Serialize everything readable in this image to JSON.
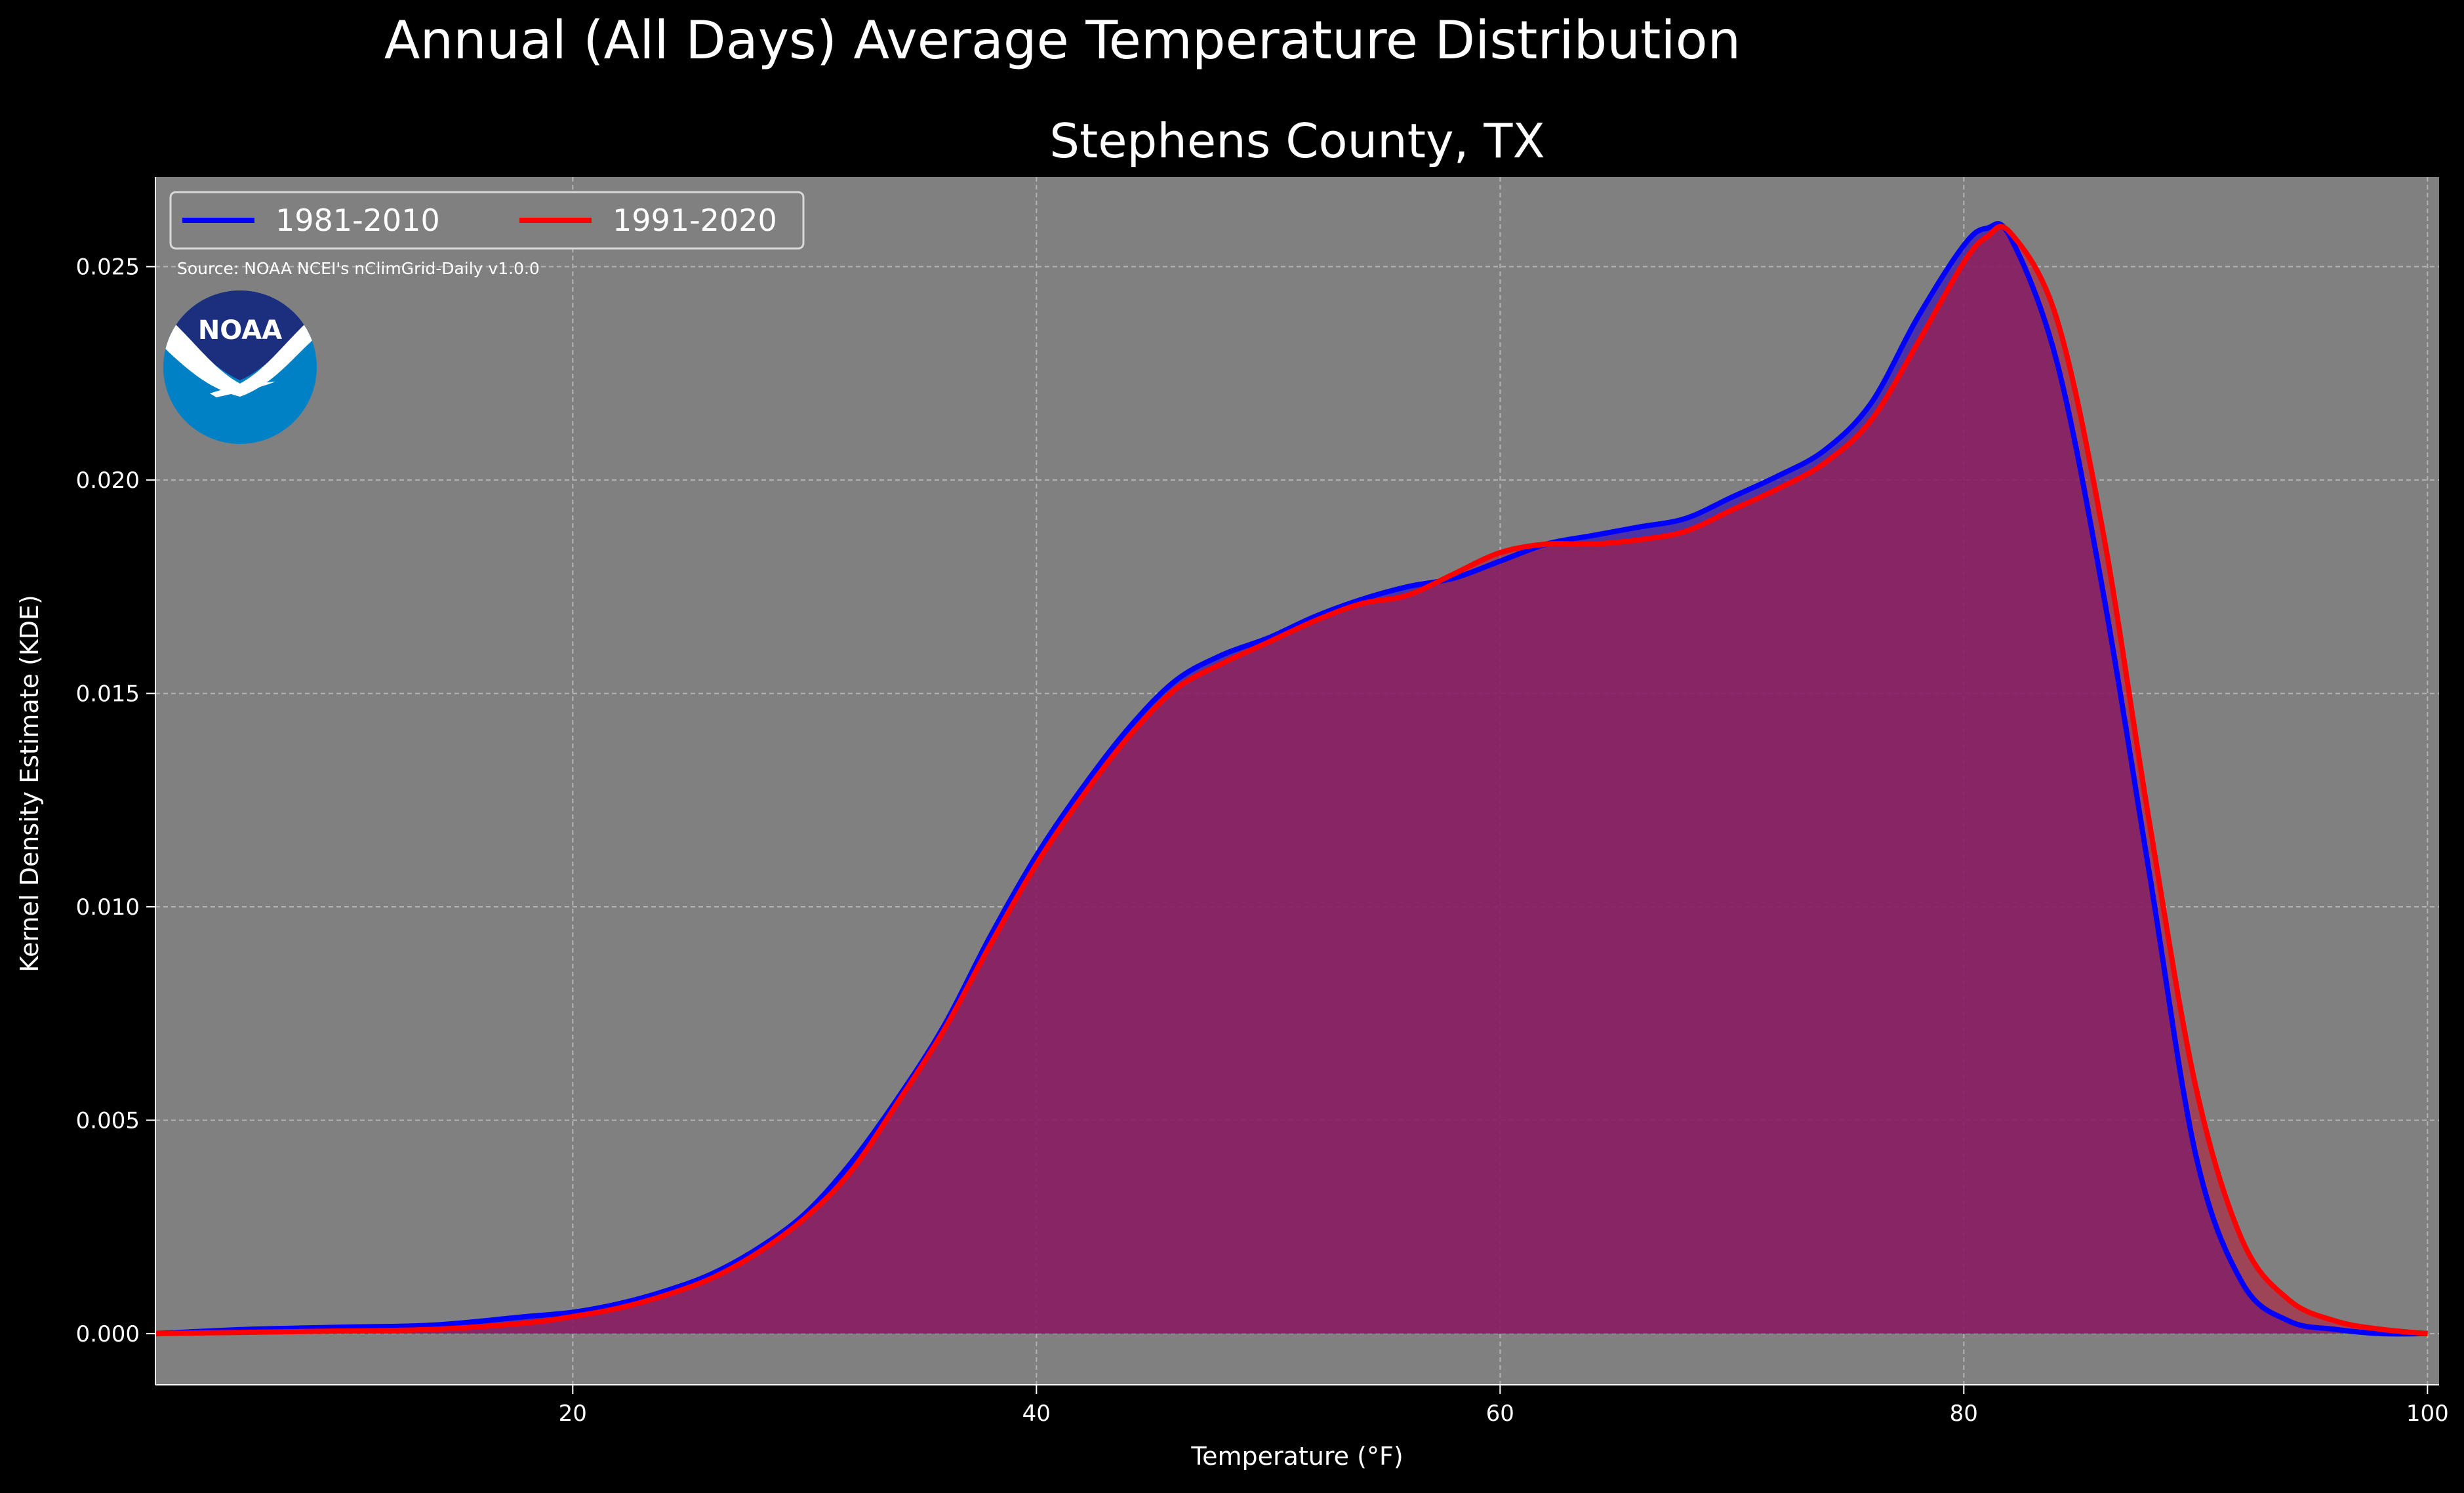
{
  "chart_data": {
    "type": "area",
    "title": "Annual (All Days) Average Temperature Distribution",
    "subtitle": "Stephens County, TX",
    "xlabel": "Temperature (°F)",
    "ylabel": "Kernel Density Estimate (KDE)",
    "source_note": "Source: NOAA NCEI's nClimGrid-Daily v1.0.0",
    "logo_text": "NOAA",
    "xlim": [
      2,
      100.5
    ],
    "ylim": [
      -0.0012,
      0.0271
    ],
    "x_ticks": [
      20,
      40,
      60,
      80,
      100
    ],
    "x_tick_labels": [
      "20",
      "40",
      "60",
      "80",
      "100"
    ],
    "y_ticks": [
      0.0,
      0.005,
      0.01,
      0.015,
      0.02,
      0.025
    ],
    "y_tick_labels": [
      "0.000",
      "0.005",
      "0.010",
      "0.015",
      "0.020",
      "0.025"
    ],
    "grid": true,
    "legend_position": "top-left",
    "series": [
      {
        "name": "1981-2010",
        "color": "#0000ff",
        "fill": "#3a1ab0",
        "x": [
          2,
          6,
          10,
          14,
          18,
          20,
          22,
          24,
          26,
          28,
          30,
          32,
          34,
          36,
          38,
          40,
          42,
          44,
          46,
          48,
          50,
          52,
          54,
          56,
          58,
          60,
          62,
          64,
          66,
          68,
          70,
          72,
          74,
          76,
          78,
          80,
          81,
          82,
          84,
          86,
          88,
          90,
          92,
          94,
          96,
          98,
          100
        ],
        "values": [
          0.0,
          0.0001,
          0.00015,
          0.0002,
          0.0004,
          0.0005,
          0.0007,
          0.001,
          0.0014,
          0.002,
          0.0028,
          0.004,
          0.0055,
          0.0072,
          0.0093,
          0.0112,
          0.0128,
          0.0142,
          0.0153,
          0.0159,
          0.0163,
          0.0168,
          0.0172,
          0.0175,
          0.0177,
          0.0181,
          0.0185,
          0.0187,
          0.0189,
          0.0191,
          0.0196,
          0.0201,
          0.0207,
          0.0218,
          0.0238,
          0.0255,
          0.0259,
          0.0257,
          0.0228,
          0.0174,
          0.0108,
          0.0042,
          0.0012,
          0.0003,
          0.0001,
          0.0,
          0.0
        ]
      },
      {
        "name": "1991-2020",
        "color": "#ff0000",
        "fill": "#b01c3c",
        "x": [
          2,
          6,
          10,
          14,
          18,
          20,
          22,
          24,
          26,
          28,
          30,
          32,
          34,
          36,
          38,
          40,
          42,
          44,
          46,
          48,
          50,
          52,
          54,
          56,
          58,
          60,
          62,
          64,
          66,
          68,
          70,
          72,
          74,
          76,
          78,
          80,
          81,
          82,
          84,
          86,
          88,
          90,
          92,
          94,
          96,
          98,
          100
        ],
        "values": [
          0.0,
          3e-05,
          6e-05,
          0.0001,
          0.00025,
          0.0004,
          0.0006,
          0.0009,
          0.0013,
          0.0019,
          0.0027,
          0.0038,
          0.0054,
          0.0071,
          0.0091,
          0.011,
          0.0126,
          0.014,
          0.0151,
          0.0157,
          0.0162,
          0.0167,
          0.0171,
          0.0173,
          0.0178,
          0.0183,
          0.0185,
          0.0185,
          0.0186,
          0.0188,
          0.0193,
          0.0198,
          0.0204,
          0.0214,
          0.0232,
          0.0251,
          0.0257,
          0.0258,
          0.0238,
          0.0188,
          0.012,
          0.0058,
          0.0022,
          0.0008,
          0.0003,
          0.0001,
          0.0
        ]
      }
    ]
  },
  "colors": {
    "background": "#000000",
    "plot_background": "#808080",
    "grid": "#b3b3b3",
    "text": "#ffffff",
    "logo_blue": "#0081c6",
    "logo_dark_blue": "#1c2f7f"
  }
}
